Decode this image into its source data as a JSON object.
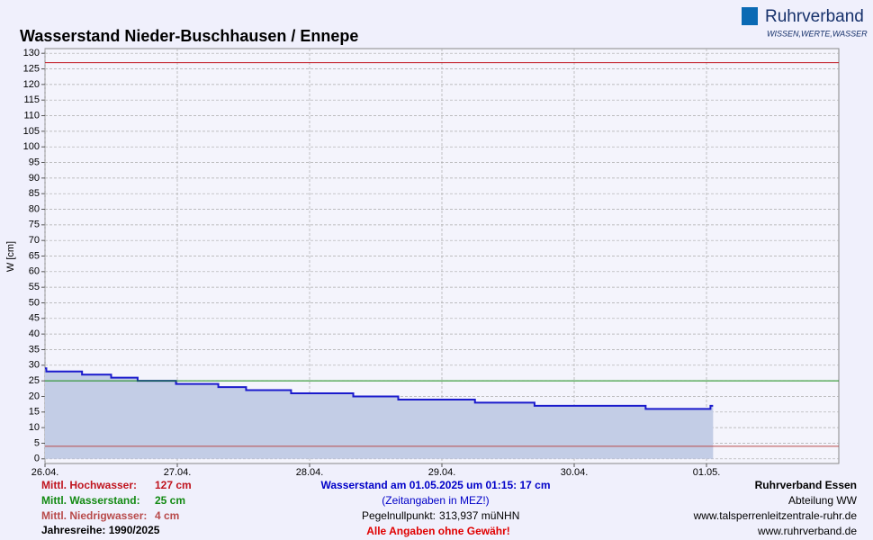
{
  "chart_data": {
    "type": "line",
    "title": "Wasserstand Nieder-Buschhausen / Ennepe",
    "y_label": "W [cm]",
    "logo": {
      "name": "Ruhrverband",
      "slogan": "WISSEN,WERTE,WASSER"
    },
    "xlim": [
      0,
      6
    ],
    "xticks": [
      {
        "value": 0,
        "label": "26.04."
      },
      {
        "value": 1,
        "label": "27.04."
      },
      {
        "value": 2,
        "label": "28.04."
      },
      {
        "value": 3,
        "label": "29.04."
      },
      {
        "value": 4,
        "label": "30.04."
      },
      {
        "value": 5,
        "label": "01.05."
      }
    ],
    "ylim": [
      -1.5,
      131.5
    ],
    "yticks": [
      0,
      5,
      10,
      15,
      20,
      25,
      30,
      35,
      40,
      45,
      50,
      55,
      60,
      65,
      70,
      75,
      80,
      85,
      90,
      95,
      100,
      105,
      110,
      115,
      120,
      125,
      130
    ],
    "grid": true,
    "series": [
      {
        "color": "#1a1acc",
        "fill": "#c3cde6",
        "x": [
          0,
          0.01,
          0.01,
          0.28,
          0.28,
          0.5,
          0.5,
          0.7,
          0.7,
          0.99,
          0.99,
          1.31,
          1.31,
          1.52,
          1.52,
          1.86,
          1.86,
          2.33,
          2.33,
          2.67,
          2.67,
          3.25,
          3.25,
          3.7,
          3.7,
          4.54,
          4.54,
          5.03,
          5.03,
          5.05
        ],
        "values": [
          29,
          29,
          28,
          28,
          27,
          27,
          26,
          26,
          25,
          25,
          24,
          24,
          23,
          23,
          22,
          22,
          21,
          21,
          20,
          20,
          19,
          19,
          18,
          18,
          17,
          17,
          16,
          16,
          17,
          17
        ]
      }
    ],
    "reference_lines": [
      {
        "label": "Mittl. Hochwasser:",
        "value": 127,
        "value_label": "127 cm",
        "color": "#c0141e"
      },
      {
        "label": "Mittl. Wasserstand:",
        "value": 25,
        "value_label": "25 cm",
        "color": "#138a13"
      },
      {
        "label": "Mittl. Niedrigwasser:",
        "value": 4,
        "value_label": "4 cm",
        "color": "#b84a4a"
      }
    ],
    "footer": {
      "series_period": "Jahresreihe: 1990/2025",
      "current": "Wasserstand am 01.05.2025 um 01:15: 17 cm",
      "timezone": "(Zeitangaben in MEZ!)",
      "gauge_zero_label": "Pegelnullpunkt:",
      "gauge_zero": "313,937 müNHN",
      "disclaimer": "Alle Angaben ohne Gewähr!",
      "org": "Ruhrverband Essen",
      "dept": "Abteilung WW",
      "url1": "www.talsperrenleitzentrale-ruhr.de",
      "url2": "www.ruhrverband.de"
    }
  }
}
